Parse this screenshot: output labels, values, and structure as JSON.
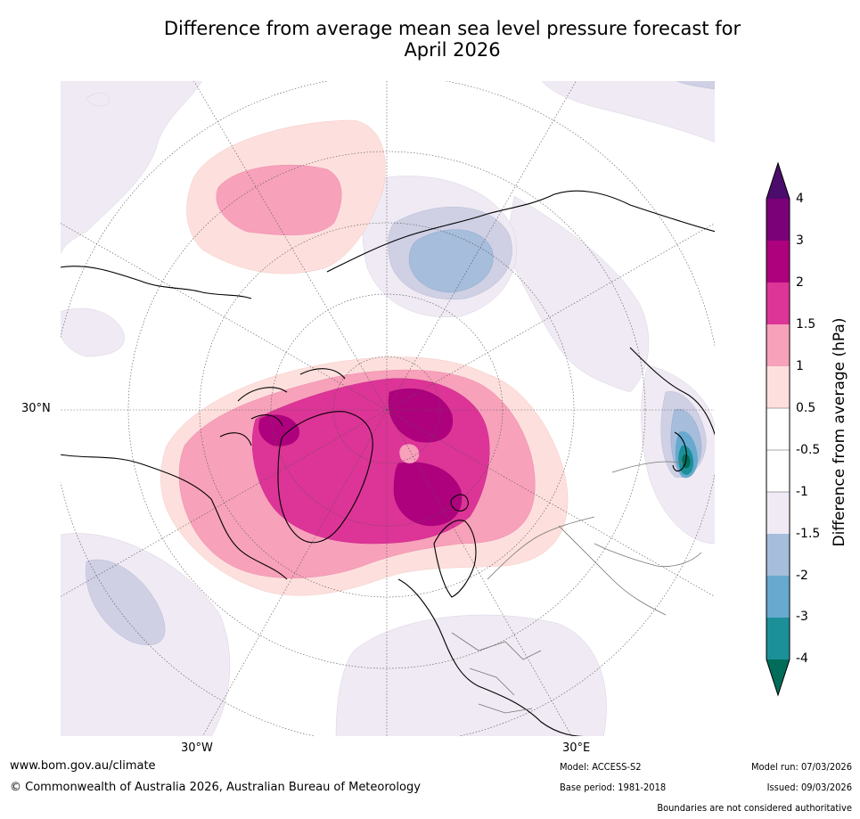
{
  "title": {
    "line1": "Difference from average mean sea level pressure forecast for",
    "line2": "April 2026"
  },
  "map": {
    "projection": "polar stereographic (north)",
    "lat_label": "30°N",
    "lon_labels": {
      "west": "30°W",
      "east": "30°E"
    }
  },
  "colorbar": {
    "label": "Difference from average (hPa)",
    "ticks": [
      "4",
      "3",
      "2",
      "1.5",
      "1",
      "0.5",
      "-0.5",
      "-1",
      "-1.5",
      "-2",
      "-3",
      "-4"
    ],
    "colors": {
      "above_4": "#4b0c6b",
      "c3_4": "#7a0177",
      "c2_3": "#ae017e",
      "c1_5_2": "#dd3497",
      "c1_1_5": "#f7a1bb",
      "c0_5_1": "#fde0dd",
      "neutral": "#ffffff",
      "cm1_m0_5": "#efeaf3",
      "cm1_5_m1": "#cfd0e4",
      "cm2_m1_5": "#a6bddb",
      "cm3_m2": "#67a9cf",
      "cm4_m3": "#1c9099",
      "below_m4": "#016c59"
    }
  },
  "footer": {
    "url": "www.bom.gov.au/climate",
    "copyright": "© Commonwealth of Australia 2026, Australian Bureau of Meteorology",
    "model": "Model: ACCESS-S2",
    "base_period": "Base period: 1981-2018",
    "model_run": "Model run: 07/03/2026",
    "issued": "Issued: 09/03/2026",
    "disclaimer": "Boundaries are not considered authoritative"
  }
}
